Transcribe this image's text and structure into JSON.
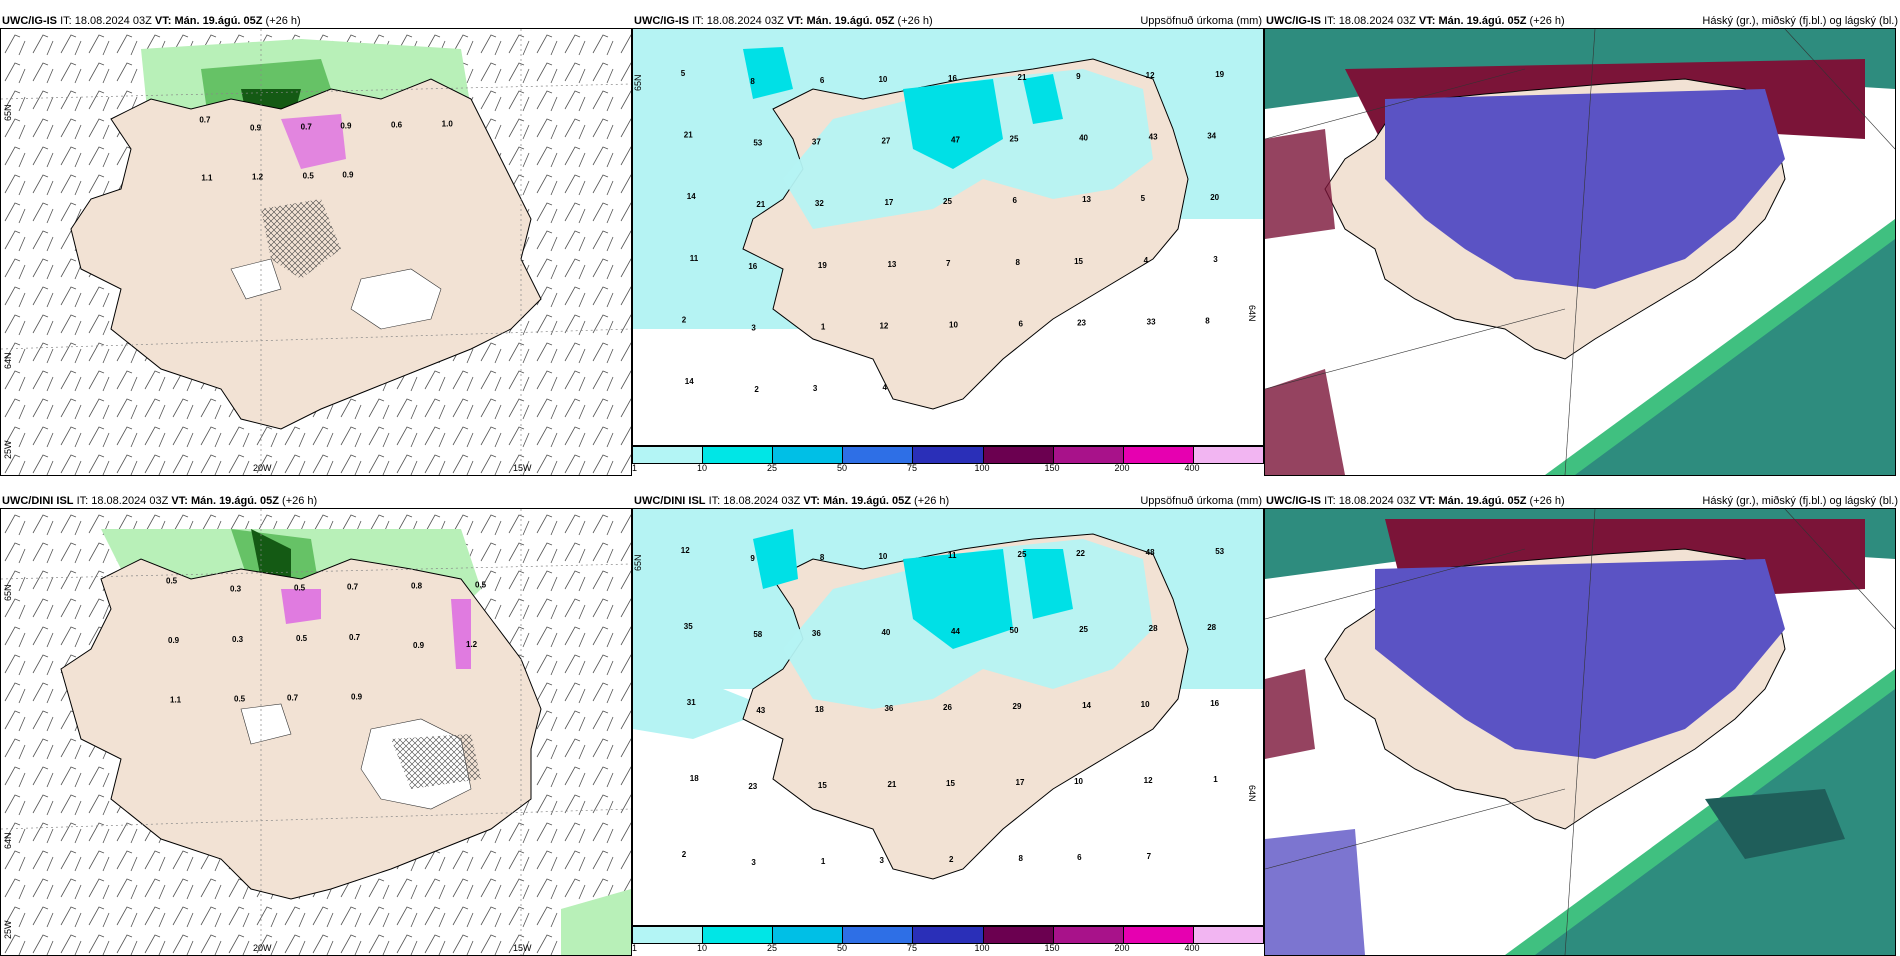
{
  "row_top": {
    "wind": {
      "model": "UWC/IG-IS",
      "it_label": "IT:",
      "it_value": "18.08.2024 03Z",
      "vt_label": "VT:",
      "vt_value": "Mán. 19.ágú. 05Z",
      "lead": "(+26 h)",
      "axis_labels": {
        "lat_top": "65N",
        "lat_bottom": "64N",
        "lat_corner": "25W",
        "lon_mid": "20W",
        "lon_right": "15W"
      },
      "values": [
        "0.7",
        "0.9",
        "0.7",
        "0.9",
        "0.6",
        "1.0",
        "1.1",
        "1.2",
        "0.5",
        "0.9"
      ]
    },
    "precip": {
      "model": "UWC/IG-IS",
      "it_label": "IT:",
      "it_value": "18.08.2024 03Z",
      "vt_label": "VT:",
      "vt_value": "Mán. 19.ágú. 05Z",
      "lead": "(+26 h)",
      "title_right": "Uppsöfnuð úrkoma (mm)",
      "axis_labels": {
        "lat_top": "65N",
        "lat_bottom": "64N"
      },
      "values": [
        "5",
        "8",
        "6",
        "10",
        "16",
        "21",
        "9",
        "12",
        "19",
        "21",
        "53",
        "37",
        "27",
        "47",
        "25",
        "40",
        "43",
        "34",
        "14",
        "21",
        "32",
        "17",
        "25",
        "6",
        "13",
        "5",
        "20",
        "11",
        "16",
        "19",
        "13",
        "7",
        "8",
        "15",
        "4",
        "3",
        "2",
        "3",
        "1",
        "12",
        "10",
        "6",
        "23",
        "33",
        "8",
        "14",
        "2",
        "3",
        "4"
      ]
    },
    "cloud": {
      "model": "UWC/IG-IS",
      "it_label": "IT:",
      "it_value": "18.08.2024 03Z",
      "vt_label": "VT:",
      "vt_value": "Mán. 19.ágú. 05Z",
      "lead": "(+26 h)",
      "title_right": "Háský (gr.), miðský (fj.bl.) og lágský (bl.)"
    }
  },
  "row_bottom": {
    "wind": {
      "model": "UWC/DINI ISL",
      "it_label": "IT:",
      "it_value": "18.08.2024 03Z",
      "vt_label": "VT:",
      "vt_value": "Mán. 19.ágú. 05Z",
      "lead": "(+26 h)",
      "axis_labels": {
        "lat_top": "65N",
        "lat_bottom": "64N",
        "lat_corner": "25W",
        "lon_mid": "20W",
        "lon_right": "15W"
      },
      "values": [
        "0.5",
        "0.3",
        "0.5",
        "0.7",
        "0.8",
        "0.5",
        "0.9",
        "0.3",
        "0.5",
        "0.7",
        "0.9",
        "1.2",
        "1.1",
        "0.5",
        "0.7",
        "0.9"
      ]
    },
    "precip": {
      "model": "UWC/DINI ISL",
      "it_label": "IT:",
      "it_value": "18.08.2024 03Z",
      "vt_label": "VT:",
      "vt_value": "Mán. 19.ágú. 05Z",
      "lead": "(+26 h)",
      "title_right": "Uppsöfnuð úrkoma (mm)",
      "axis_labels": {
        "lat_top": "65N",
        "lat_bottom": "64N"
      },
      "values": [
        "12",
        "9",
        "8",
        "10",
        "11",
        "25",
        "22",
        "48",
        "53",
        "35",
        "58",
        "36",
        "40",
        "44",
        "50",
        "25",
        "28",
        "28",
        "31",
        "43",
        "18",
        "36",
        "26",
        "29",
        "14",
        "10",
        "16",
        "18",
        "23",
        "15",
        "21",
        "15",
        "17",
        "10",
        "12",
        "1",
        "2",
        "3",
        "1",
        "3",
        "2",
        "8",
        "6",
        "7"
      ]
    },
    "cloud": {
      "model": "UWC/IG-IS",
      "it_label": "IT:",
      "it_value": "18.08.2024 03Z",
      "vt_label": "VT:",
      "vt_value": "Mán. 19.ágú. 05Z",
      "lead": "(+26 h)",
      "title_right": "Háský (gr.), miðský (fj.bl.) og lágský (bl.)"
    }
  },
  "precip_scale": {
    "ticks": [
      "1",
      "10",
      "25",
      "50",
      "75",
      "100",
      "150",
      "200",
      "400"
    ],
    "colors": [
      "#b3f5f5",
      "#00e6e6",
      "#00bfe6",
      "#2e6fe6",
      "#2a2fb8",
      "#6b0050",
      "#a8128a",
      "#e600b0",
      "#f2b5f2"
    ]
  },
  "colors": {
    "land": "#f2e2d4",
    "sea": "#ffffff",
    "precip_sea": "#b5f3f3",
    "precip_cyan": "#00e0e6",
    "wind_green_light": "#b8f0b8",
    "wind_green": "#66c266",
    "wind_green_dark": "#145a14",
    "wind_magenta": "#e07be0",
    "cloud_high": "#7b1438",
    "cloud_mid": "#5b53c4",
    "cloud_low": "#2e8c7e",
    "cloud_green": "#40c080"
  }
}
